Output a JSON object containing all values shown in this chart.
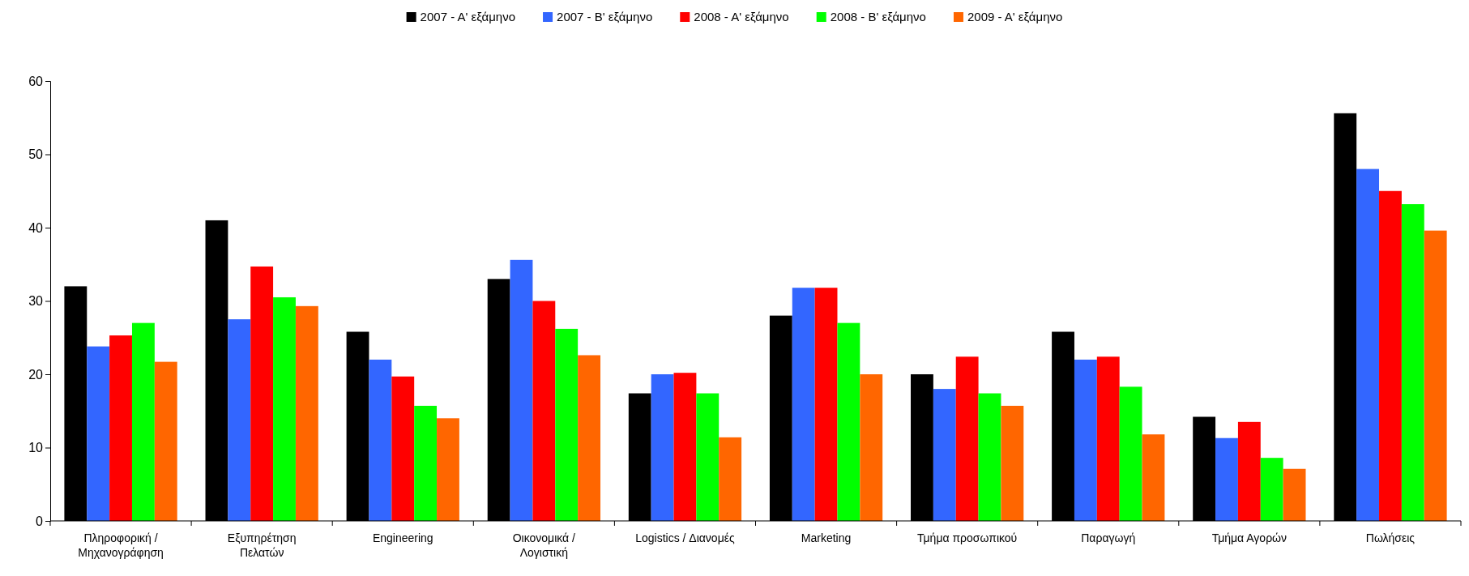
{
  "chart_data": {
    "type": "bar",
    "categories": [
      "Πληροφορική /\nΜηχανογράφηση",
      "Εξυπηρέτηση\nΠελατών",
      "Engineering",
      "Οικονομικά /\nΛογιστική",
      "Logistics / Διανομές",
      "Marketing",
      "Τμήμα προσωπικού",
      "Παραγωγή",
      "Τμήμα Αγορών",
      "Πωλήσεις"
    ],
    "series": [
      {
        "name": "2007 - Α' εξάμηνο",
        "color": "#000000",
        "values": [
          32,
          41,
          25.8,
          33,
          17.4,
          28,
          20,
          25.8,
          14.2,
          55.6
        ]
      },
      {
        "name": "2007 - Β' εξάμηνο",
        "color": "#3366ff",
        "values": [
          23.8,
          27.5,
          22,
          35.6,
          20,
          31.8,
          18,
          22,
          11.3,
          48
        ]
      },
      {
        "name": "2008 - Α' εξάμηνο",
        "color": "#ff0000",
        "values": [
          25.3,
          34.7,
          19.7,
          30,
          20.2,
          31.8,
          22.4,
          22.4,
          13.5,
          45
        ]
      },
      {
        "name": "2008 - Β' εξάμηνο",
        "color": "#00ff00",
        "values": [
          27,
          30.5,
          15.7,
          26.2,
          17.4,
          27,
          17.4,
          18.3,
          8.6,
          43.2
        ]
      },
      {
        "name": "2009 - Α' εξάμηνο",
        "color": "#ff6600",
        "values": [
          21.7,
          29.3,
          14,
          22.6,
          11.4,
          20,
          15.7,
          11.8,
          7.1,
          39.6
        ]
      }
    ],
    "ylim": [
      0,
      60
    ],
    "yticks": [
      0,
      10,
      20,
      30,
      40,
      50,
      60
    ],
    "grid": false,
    "legend": "top"
  }
}
